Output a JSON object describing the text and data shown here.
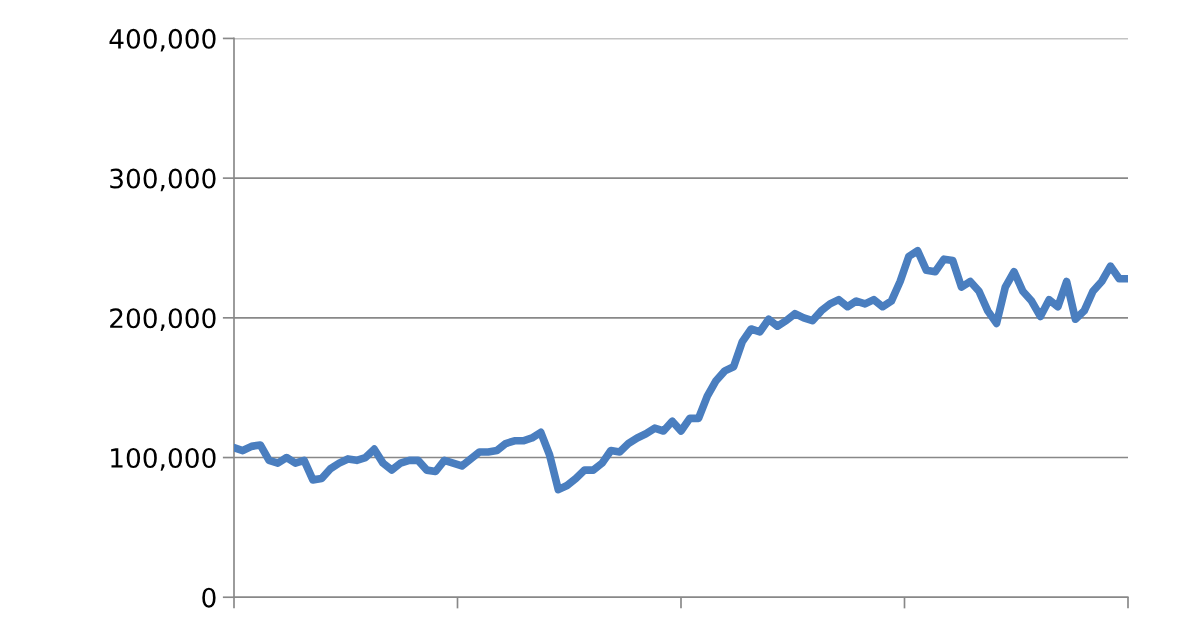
{
  "chart_data": {
    "type": "line",
    "color": "#4a7ebf",
    "ylim": [
      0,
      400000
    ],
    "yticks": [
      {
        "value": 0,
        "label": "0"
      },
      {
        "value": 100000,
        "label": "100,000"
      },
      {
        "value": 200000,
        "label": "200,000"
      },
      {
        "value": 300000,
        "label": "300,000"
      },
      {
        "value": 400000,
        "label": "400,000"
      }
    ],
    "grid": "y",
    "marker": "none",
    "line_style": "solid",
    "legend": false,
    "categories": [
      null,
      null,
      null,
      null,
      null,
      null,
      null,
      null,
      null,
      null,
      null,
      null,
      null,
      null,
      null,
      null,
      null,
      null,
      null,
      null,
      null,
      null,
      null,
      null,
      null,
      null,
      null,
      null,
      null,
      null,
      null,
      null,
      null,
      null,
      null,
      null,
      null,
      null,
      null,
      null,
      null,
      null,
      null,
      null,
      null,
      null,
      null,
      null,
      null,
      null,
      null,
      null,
      null,
      null,
      null,
      null,
      null,
      null,
      null,
      null,
      null,
      null,
      null,
      null,
      null,
      null,
      null,
      null,
      null,
      null,
      null,
      null,
      null,
      null,
      null,
      null,
      null,
      null,
      null,
      null,
      null,
      null,
      null,
      null,
      null,
      null,
      null,
      null,
      null,
      null,
      null,
      null,
      null,
      null,
      null,
      null,
      null,
      null,
      null,
      null,
      null,
      null,
      null
    ],
    "values": [
      107000,
      105000,
      108000,
      109000,
      98000,
      96000,
      100000,
      96000,
      98000,
      84000,
      85000,
      92000,
      96000,
      99000,
      98000,
      100000,
      106000,
      96000,
      91000,
      96000,
      98000,
      98000,
      91000,
      90000,
      98000,
      96000,
      94000,
      99000,
      104000,
      104000,
      105000,
      110000,
      112000,
      112000,
      114000,
      118000,
      102000,
      77000,
      80000,
      85000,
      91000,
      91000,
      96000,
      105000,
      104000,
      110000,
      114000,
      117000,
      121000,
      119000,
      126000,
      119000,
      128000,
      128000,
      144000,
      155000,
      162000,
      165000,
      183000,
      192000,
      190000,
      199000,
      194000,
      198000,
      203000,
      200000,
      198000,
      205000,
      210000,
      213000,
      208000,
      212000,
      210000,
      213000,
      208000,
      212000,
      226000,
      244000,
      248000,
      234000,
      233000,
      242000,
      241000,
      222000,
      226000,
      219000,
      205000,
      196000,
      222000,
      233000,
      219000,
      212000,
      201000,
      213000,
      208000,
      226000,
      199000,
      205000,
      219000,
      226000,
      237000,
      228000,
      228000
    ]
  }
}
